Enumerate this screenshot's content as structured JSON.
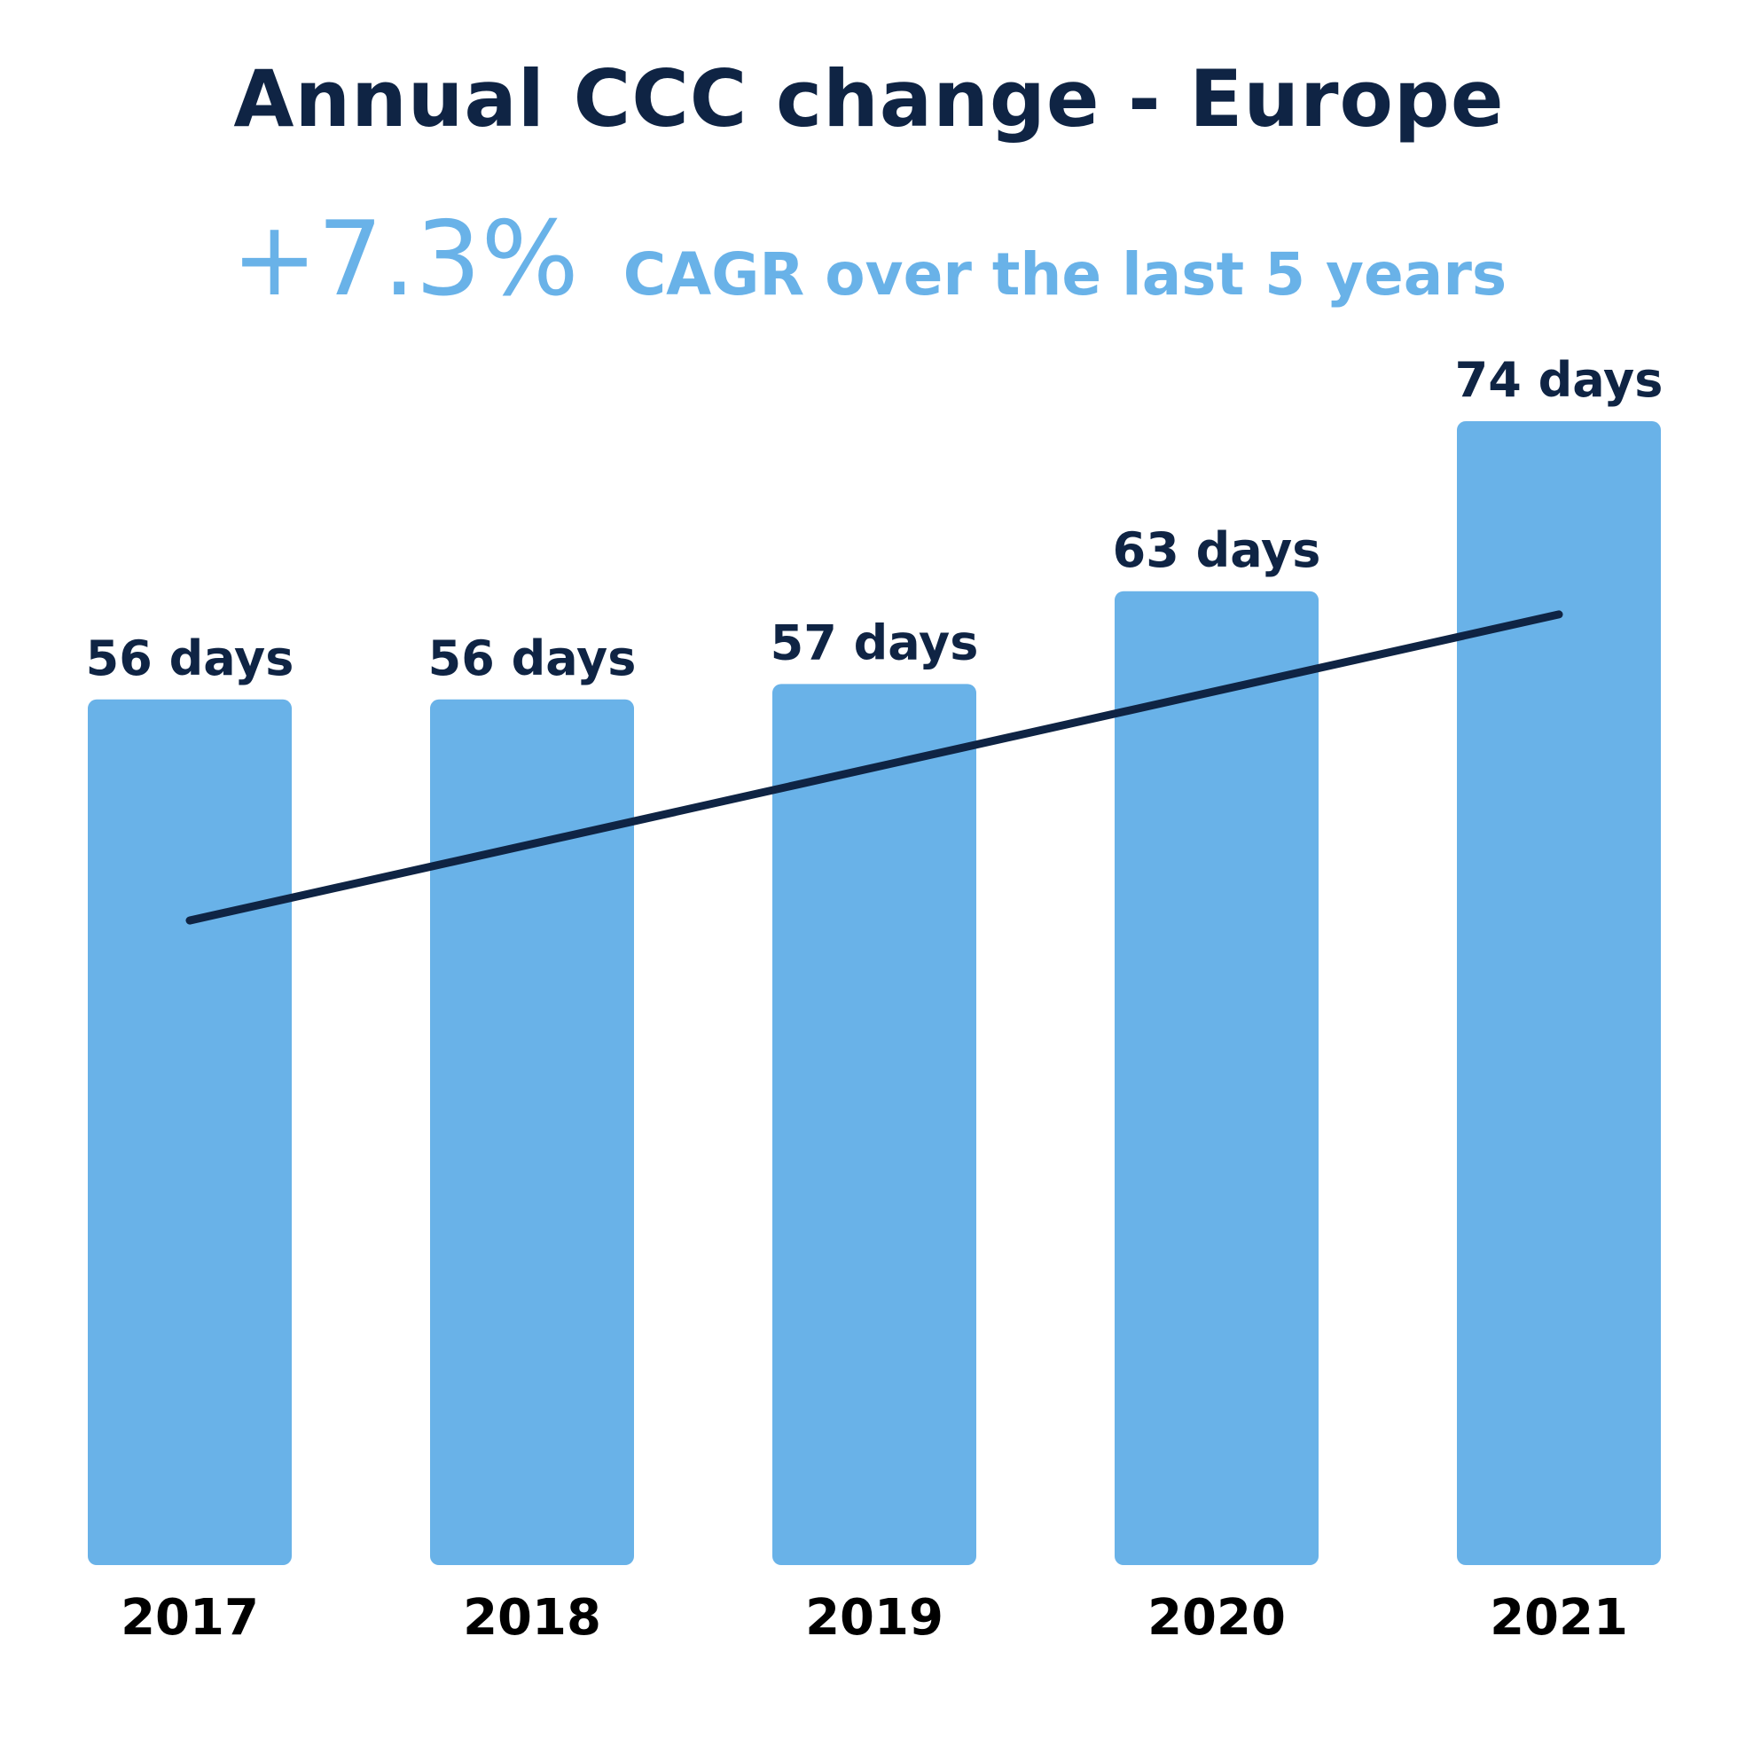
{
  "chart_data": {
    "type": "bar",
    "title": "Annual CCC change - Europe",
    "subtitle": {
      "value": "+7.3%",
      "text": "CAGR over the last 5 years"
    },
    "categories": [
      "2017",
      "2018",
      "2019",
      "2020",
      "2021"
    ],
    "values": [
      56,
      56,
      57,
      63,
      74
    ],
    "data_labels": [
      "56 days",
      "56 days",
      "57 days",
      "63 days",
      "74 days"
    ],
    "unit": "days",
    "ylim": [
      0,
      74
    ],
    "trendline": {
      "start": 41.7,
      "end": 61.5
    },
    "grid": false,
    "colors": {
      "bar": "#69b2e8",
      "trend": "#0f2444",
      "title": "#0f2444",
      "subtitle": "#69b2e8"
    }
  }
}
